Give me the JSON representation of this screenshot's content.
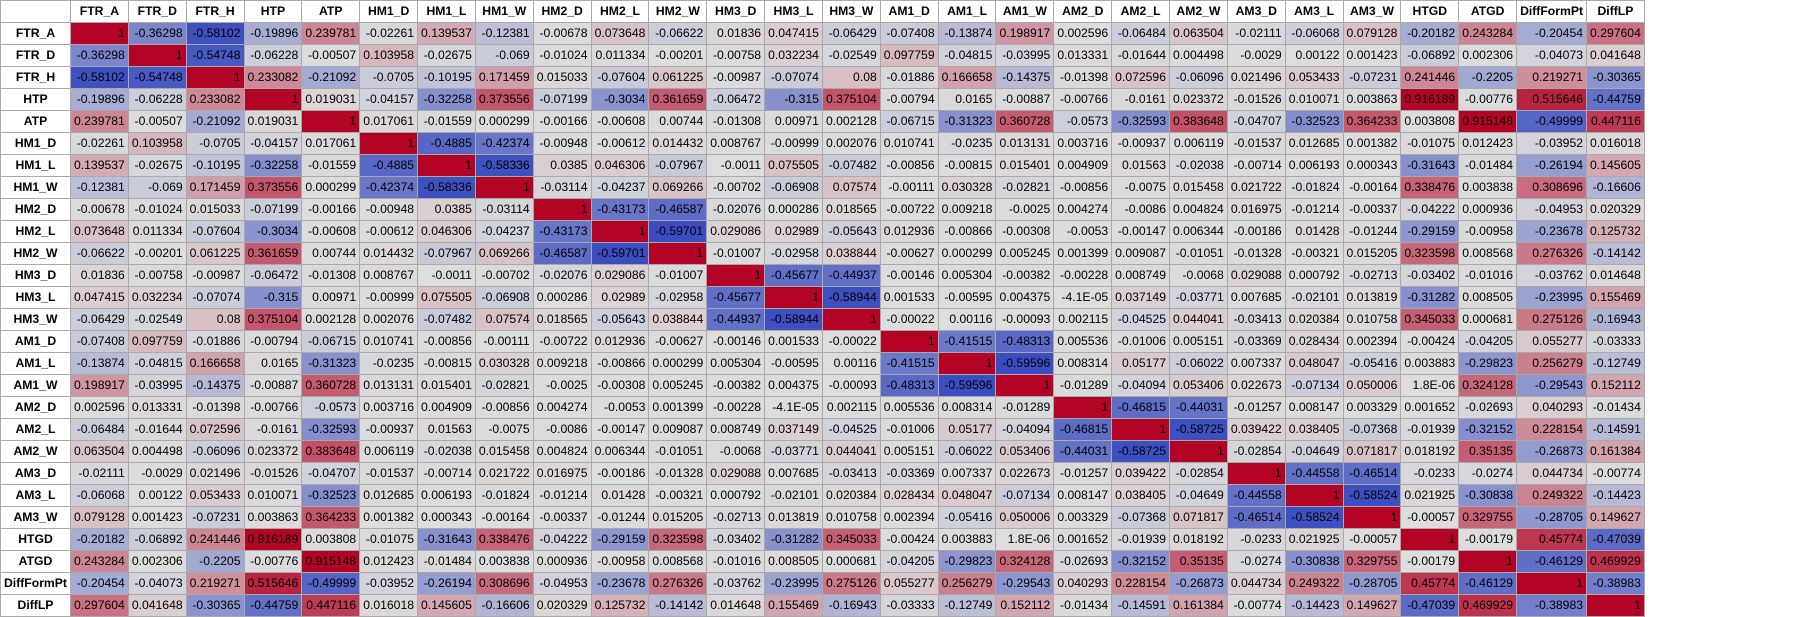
{
  "sheet": {
    "headers": [
      "FTR_A",
      "FTR_D",
      "FTR_H",
      "HTP",
      "ATP",
      "HM1_D",
      "HM1_L",
      "HM1_W",
      "HM2_D",
      "HM2_L",
      "HM2_W",
      "HM3_D",
      "HM3_L",
      "HM3_W",
      "AM1_D",
      "AM1_L",
      "AM1_W",
      "AM2_D",
      "AM2_L",
      "AM2_W",
      "AM3_D",
      "AM3_L",
      "AM3_W",
      "HTGD",
      "ATGD",
      "DiffFormPt",
      "DiffLP"
    ],
    "rows": [
      {
        "label": "FTR_A",
        "values": [
          "1",
          "-0.36298",
          "-0.58102",
          "-0.19896",
          "0.239781",
          "-0.02261",
          "0.139537",
          "-0.12381",
          "-0.00678",
          "0.073648",
          "-0.06622",
          "0.01836",
          "0.047415",
          "-0.06429",
          "-0.07408",
          "-0.13874",
          "0.198917",
          "0.002596",
          "-0.06484",
          "0.063504",
          "-0.02111",
          "-0.06068",
          "0.079128",
          "-0.20182",
          "0.243284",
          "-0.20454",
          "0.297604"
        ]
      },
      {
        "label": "FTR_D",
        "values": [
          "-0.36298",
          "1",
          "-0.54748",
          "-0.06228",
          "-0.00507",
          "0.103958",
          "-0.02675",
          "-0.069",
          "-0.01024",
          "0.011334",
          "-0.00201",
          "-0.00758",
          "0.032234",
          "-0.02549",
          "0.097759",
          "-0.04815",
          "-0.03995",
          "0.013331",
          "-0.01644",
          "0.004498",
          "-0.0029",
          "0.00122",
          "0.001423",
          "-0.06892",
          "0.002306",
          "-0.04073",
          "0.041648"
        ]
      },
      {
        "label": "FTR_H",
        "values": [
          "-0.58102",
          "-0.54748",
          "1",
          "0.233082",
          "-0.21092",
          "-0.0705",
          "-0.10195",
          "0.171459",
          "0.015033",
          "-0.07604",
          "0.061225",
          "-0.00987",
          "-0.07074",
          "0.08",
          "-0.01886",
          "0.166658",
          "-0.14375",
          "-0.01398",
          "0.072596",
          "-0.06096",
          "0.021496",
          "0.053433",
          "-0.07231",
          "0.241446",
          "-0.2205",
          "0.219271",
          "-0.30365"
        ]
      },
      {
        "label": "HTP",
        "values": [
          "-0.19896",
          "-0.06228",
          "0.233082",
          "1",
          "0.019031",
          "-0.04157",
          "-0.32258",
          "0.373556",
          "-0.07199",
          "-0.3034",
          "0.361659",
          "-0.06472",
          "-0.315",
          "0.375104",
          "-0.00794",
          "0.0165",
          "-0.00887",
          "-0.00766",
          "-0.0161",
          "0.023372",
          "-0.01526",
          "0.010071",
          "0.003863",
          "0.916189",
          "-0.00776",
          "0.515646",
          "-0.44759"
        ]
      },
      {
        "label": "ATP",
        "values": [
          "0.239781",
          "-0.00507",
          "-0.21092",
          "0.019031",
          "1",
          "0.017061",
          "-0.01559",
          "0.000299",
          "-0.00166",
          "-0.00608",
          "0.00744",
          "-0.01308",
          "0.00971",
          "0.002128",
          "-0.06715",
          "-0.31323",
          "0.360728",
          "-0.0573",
          "-0.32593",
          "0.383648",
          "-0.04707",
          "-0.32523",
          "0.364233",
          "0.003808",
          "0.915148",
          "-0.49999",
          "0.447116"
        ]
      },
      {
        "label": "HM1_D",
        "values": [
          "-0.02261",
          "0.103958",
          "-0.0705",
          "-0.04157",
          "0.017061",
          "1",
          "-0.4885",
          "-0.42374",
          "-0.00948",
          "-0.00612",
          "0.014432",
          "0.008767",
          "-0.00999",
          "0.002076",
          "0.010741",
          "-0.0235",
          "0.013131",
          "0.003716",
          "-0.00937",
          "0.006119",
          "-0.01537",
          "0.012685",
          "0.001382",
          "-0.01075",
          "0.012423",
          "-0.03952",
          "0.016018"
        ]
      },
      {
        "label": "HM1_L",
        "values": [
          "0.139537",
          "-0.02675",
          "-0.10195",
          "-0.32258",
          "-0.01559",
          "-0.4885",
          "1",
          "-0.58336",
          "0.0385",
          "0.046306",
          "-0.07967",
          "-0.0011",
          "0.075505",
          "-0.07482",
          "-0.00856",
          "-0.00815",
          "0.015401",
          "0.004909",
          "0.01563",
          "-0.02038",
          "-0.00714",
          "0.006193",
          "0.000343",
          "-0.31643",
          "-0.01484",
          "-0.26194",
          "0.145605"
        ]
      },
      {
        "label": "HM1_W",
        "values": [
          "-0.12381",
          "-0.069",
          "0.171459",
          "0.373556",
          "0.000299",
          "-0.42374",
          "-0.58336",
          "1",
          "-0.03114",
          "-0.04237",
          "0.069266",
          "-0.00702",
          "-0.06908",
          "0.07574",
          "-0.00111",
          "0.030328",
          "-0.02821",
          "-0.00856",
          "-0.0075",
          "0.015458",
          "0.021722",
          "-0.01824",
          "-0.00164",
          "0.338476",
          "0.003838",
          "0.308696",
          "-0.16606"
        ]
      },
      {
        "label": "HM2_D",
        "values": [
          "-0.00678",
          "-0.01024",
          "0.015033",
          "-0.07199",
          "-0.00166",
          "-0.00948",
          "0.0385",
          "-0.03114",
          "1",
          "-0.43173",
          "-0.46587",
          "-0.02076",
          "0.000286",
          "0.018565",
          "-0.00722",
          "0.009218",
          "-0.0025",
          "0.004274",
          "-0.0086",
          "0.004824",
          "0.016975",
          "-0.01214",
          "-0.00337",
          "-0.04222",
          "0.000936",
          "-0.04953",
          "0.020329"
        ]
      },
      {
        "label": "HM2_L",
        "values": [
          "0.073648",
          "0.011334",
          "-0.07604",
          "-0.3034",
          "-0.00608",
          "-0.00612",
          "0.046306",
          "-0.04237",
          "-0.43173",
          "1",
          "-0.59701",
          "0.029086",
          "0.02989",
          "-0.05643",
          "0.012936",
          "-0.00866",
          "-0.00308",
          "-0.0053",
          "-0.00147",
          "0.006344",
          "-0.00186",
          "0.01428",
          "-0.01244",
          "-0.29159",
          "-0.00958",
          "-0.23678",
          "0.125732"
        ]
      },
      {
        "label": "HM2_W",
        "values": [
          "-0.06622",
          "-0.00201",
          "0.061225",
          "0.361659",
          "0.00744",
          "0.014432",
          "-0.07967",
          "0.069266",
          "-0.46587",
          "-0.59701",
          "1",
          "-0.01007",
          "-0.02958",
          "0.038844",
          "-0.00627",
          "0.000299",
          "0.005245",
          "0.001399",
          "0.009087",
          "-0.01051",
          "-0.01328",
          "-0.00321",
          "0.015205",
          "0.323598",
          "0.008568",
          "0.276326",
          "-0.14142"
        ]
      },
      {
        "label": "HM3_D",
        "values": [
          "0.01836",
          "-0.00758",
          "-0.00987",
          "-0.06472",
          "-0.01308",
          "0.008767",
          "-0.0011",
          "-0.00702",
          "-0.02076",
          "0.029086",
          "-0.01007",
          "1",
          "-0.45677",
          "-0.44937",
          "-0.00146",
          "0.005304",
          "-0.00382",
          "-0.00228",
          "0.008749",
          "-0.0068",
          "0.029088",
          "0.000792",
          "-0.02713",
          "-0.03402",
          "-0.01016",
          "-0.03762",
          "0.014648"
        ]
      },
      {
        "label": "HM3_L",
        "values": [
          "0.047415",
          "0.032234",
          "-0.07074",
          "-0.315",
          "0.00971",
          "-0.00999",
          "0.075505",
          "-0.06908",
          "0.000286",
          "0.02989",
          "-0.02958",
          "-0.45677",
          "1",
          "-0.58944",
          "0.001533",
          "-0.00595",
          "0.004375",
          "-4.1E-05",
          "0.037149",
          "-0.03771",
          "0.007685",
          "-0.02101",
          "0.013819",
          "-0.31282",
          "0.008505",
          "-0.23995",
          "0.155469"
        ]
      },
      {
        "label": "HM3_W",
        "values": [
          "-0.06429",
          "-0.02549",
          "0.08",
          "0.375104",
          "0.002128",
          "0.002076",
          "-0.07482",
          "0.07574",
          "0.018565",
          "-0.05643",
          "0.038844",
          "-0.44937",
          "-0.58944",
          "1",
          "-0.00022",
          "0.00116",
          "-0.00093",
          "0.002115",
          "-0.04525",
          "0.044041",
          "-0.03413",
          "0.020384",
          "0.010758",
          "0.345033",
          "0.000681",
          "0.275126",
          "-0.16943"
        ]
      },
      {
        "label": "AM1_D",
        "values": [
          "-0.07408",
          "0.097759",
          "-0.01886",
          "-0.00794",
          "-0.06715",
          "0.010741",
          "-0.00856",
          "-0.00111",
          "-0.00722",
          "0.012936",
          "-0.00627",
          "-0.00146",
          "0.001533",
          "-0.00022",
          "1",
          "-0.41515",
          "-0.48313",
          "0.005536",
          "-0.01006",
          "0.005151",
          "-0.03369",
          "0.028434",
          "0.002394",
          "-0.00424",
          "-0.04205",
          "0.055277",
          "-0.03333"
        ]
      },
      {
        "label": "AM1_L",
        "values": [
          "-0.13874",
          "-0.04815",
          "0.166658",
          "0.0165",
          "-0.31323",
          "-0.0235",
          "-0.00815",
          "0.030328",
          "0.009218",
          "-0.00866",
          "0.000299",
          "0.005304",
          "-0.00595",
          "0.00116",
          "-0.41515",
          "1",
          "-0.59596",
          "0.008314",
          "0.05177",
          "-0.06022",
          "0.007337",
          "0.048047",
          "-0.05416",
          "0.003883",
          "-0.29823",
          "0.256279",
          "-0.12749"
        ]
      },
      {
        "label": "AM1_W",
        "values": [
          "0.198917",
          "-0.03995",
          "-0.14375",
          "-0.00887",
          "0.360728",
          "0.013131",
          "0.015401",
          "-0.02821",
          "-0.0025",
          "-0.00308",
          "0.005245",
          "-0.00382",
          "0.004375",
          "-0.00093",
          "-0.48313",
          "-0.59596",
          "1",
          "-0.01289",
          "-0.04094",
          "0.053406",
          "0.022673",
          "-0.07134",
          "0.050006",
          "1.8E-06",
          "0.324128",
          "-0.29543",
          "0.152112"
        ]
      },
      {
        "label": "AM2_D",
        "values": [
          "0.002596",
          "0.013331",
          "-0.01398",
          "-0.00766",
          "-0.0573",
          "0.003716",
          "0.004909",
          "-0.00856",
          "0.004274",
          "-0.0053",
          "0.001399",
          "-0.00228",
          "-4.1E-05",
          "0.002115",
          "0.005536",
          "0.008314",
          "-0.01289",
          "1",
          "-0.46815",
          "-0.44031",
          "-0.01257",
          "0.008147",
          "0.003329",
          "0.001652",
          "-0.02693",
          "0.040293",
          "-0.01434"
        ]
      },
      {
        "label": "AM2_L",
        "values": [
          "-0.06484",
          "-0.01644",
          "0.072596",
          "-0.0161",
          "-0.32593",
          "-0.00937",
          "0.01563",
          "-0.0075",
          "-0.0086",
          "-0.00147",
          "0.009087",
          "0.008749",
          "0.037149",
          "-0.04525",
          "-0.01006",
          "0.05177",
          "-0.04094",
          "-0.46815",
          "1",
          "-0.58725",
          "0.039422",
          "0.038405",
          "-0.07368",
          "-0.01939",
          "-0.32152",
          "0.228154",
          "-0.14591"
        ]
      },
      {
        "label": "AM2_W",
        "values": [
          "0.063504",
          "0.004498",
          "-0.06096",
          "0.023372",
          "0.383648",
          "0.006119",
          "-0.02038",
          "0.015458",
          "0.004824",
          "0.006344",
          "-0.01051",
          "-0.0068",
          "-0.03771",
          "0.044041",
          "0.005151",
          "-0.06022",
          "0.053406",
          "-0.44031",
          "-0.58725",
          "1",
          "-0.02854",
          "-0.04649",
          "0.071817",
          "0.018192",
          "0.35135",
          "-0.26873",
          "0.161384"
        ]
      },
      {
        "label": "AM3_D",
        "values": [
          "-0.02111",
          "-0.0029",
          "0.021496",
          "-0.01526",
          "-0.04707",
          "-0.01537",
          "-0.00714",
          "0.021722",
          "0.016975",
          "-0.00186",
          "-0.01328",
          "0.029088",
          "0.007685",
          "-0.03413",
          "-0.03369",
          "0.007337",
          "0.022673",
          "-0.01257",
          "0.039422",
          "-0.02854",
          "1",
          "-0.44558",
          "-0.46514",
          "-0.0233",
          "-0.0274",
          "0.044734",
          "-0.00774"
        ]
      },
      {
        "label": "AM3_L",
        "values": [
          "-0.06068",
          "0.00122",
          "0.053433",
          "0.010071",
          "-0.32523",
          "0.012685",
          "0.006193",
          "-0.01824",
          "-0.01214",
          "0.01428",
          "-0.00321",
          "0.000792",
          "-0.02101",
          "0.020384",
          "0.028434",
          "0.048047",
          "-0.07134",
          "0.008147",
          "0.038405",
          "-0.04649",
          "-0.44558",
          "1",
          "-0.58524",
          "0.021925",
          "-0.30838",
          "0.249322",
          "-0.14423"
        ]
      },
      {
        "label": "AM3_W",
        "values": [
          "0.079128",
          "0.001423",
          "-0.07231",
          "0.003863",
          "0.364233",
          "0.001382",
          "0.000343",
          "-0.00164",
          "-0.00337",
          "-0.01244",
          "0.015205",
          "-0.02713",
          "0.013819",
          "0.010758",
          "0.002394",
          "-0.05416",
          "0.050006",
          "0.003329",
          "-0.07368",
          "0.071817",
          "-0.46514",
          "-0.58524",
          "1",
          "-0.00057",
          "0.329755",
          "-0.28705",
          "0.149627"
        ]
      },
      {
        "label": "HTGD",
        "values": [
          "-0.20182",
          "-0.06892",
          "0.241446",
          "0.916189",
          "0.003808",
          "-0.01075",
          "-0.31643",
          "0.338476",
          "-0.04222",
          "-0.29159",
          "0.323598",
          "-0.03402",
          "-0.31282",
          "0.345033",
          "-0.00424",
          "0.003883",
          "1.8E-06",
          "0.001652",
          "-0.01939",
          "0.018192",
          "-0.0233",
          "0.021925",
          "-0.00057",
          "1",
          "-0.00179",
          "0.45774",
          "-0.47039"
        ]
      },
      {
        "label": "ATGD",
        "values": [
          "0.243284",
          "0.002306",
          "-0.2205",
          "-0.00776",
          "0.915148",
          "0.012423",
          "-0.01484",
          "0.003838",
          "0.000936",
          "-0.00958",
          "0.008568",
          "-0.01016",
          "0.008505",
          "0.000681",
          "-0.04205",
          "-0.29823",
          "0.324128",
          "-0.02693",
          "-0.32152",
          "0.35135",
          "-0.0274",
          "-0.30838",
          "0.329755",
          "-0.00179",
          "1",
          "-0.46129",
          "0.469929"
        ]
      },
      {
        "label": "DiffFormPt",
        "values": [
          "-0.20454",
          "-0.04073",
          "0.219271",
          "0.515646",
          "-0.49999",
          "-0.03952",
          "-0.26194",
          "0.308696",
          "-0.04953",
          "-0.23678",
          "0.276326",
          "-0.03762",
          "-0.23995",
          "0.275126",
          "0.055277",
          "0.256279",
          "-0.29543",
          "0.040293",
          "0.228154",
          "-0.26873",
          "0.044734",
          "0.249322",
          "-0.28705",
          "0.45774",
          "-0.46129",
          "1",
          "-0.38983"
        ]
      },
      {
        "label": "DiffLP",
        "values": [
          "0.297604",
          "0.041648",
          "-0.30365",
          "-0.44759",
          "0.447116",
          "0.016018",
          "0.145605",
          "-0.16606",
          "0.020329",
          "0.125732",
          "-0.14142",
          "0.014648",
          "0.155469",
          "-0.16943",
          "-0.03333",
          "-0.12749",
          "0.152112",
          "-0.01434",
          "-0.14591",
          "0.161384",
          "-0.00774",
          "-0.14423",
          "0.149627",
          "-0.47039",
          "0.469929",
          "-0.38983",
          "1"
        ]
      }
    ],
    "colors": {
      "negative": "#3a4cc0",
      "neutral": "#dddddd",
      "positive": "#b40426",
      "header_bg": "#ffffff",
      "grid": "#a9a9a9"
    }
  }
}
